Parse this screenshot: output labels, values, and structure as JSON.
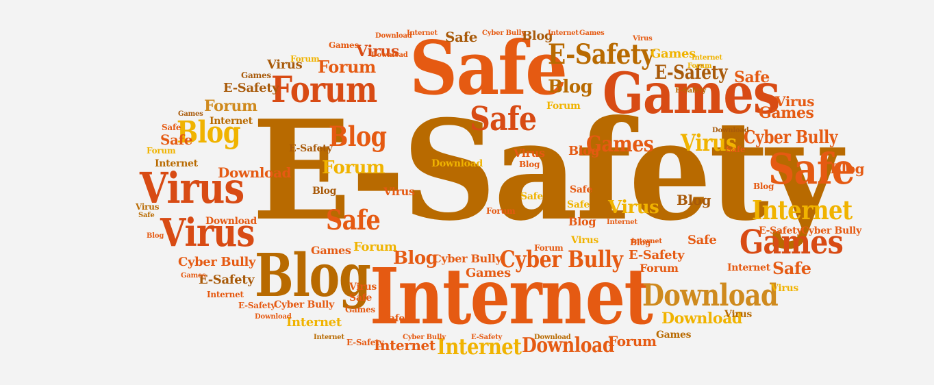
{
  "words": {
    "esafety": "E-Safety",
    "safe": "Safe",
    "internet": "Internet",
    "games": "Games",
    "blog": "Blog",
    "forum": "Forum",
    "virus": "Virus",
    "download": "Download",
    "cyberbully": "Cyber Bully"
  },
  "colors": {
    "background": "#f3f3f3",
    "dark_orange": "#b86a00",
    "orange": "#e55a12",
    "mustard": "#c7a200",
    "red_orange": "#d84b14",
    "amber": "#cf8a1e",
    "yellow": "#f0b300"
  }
}
